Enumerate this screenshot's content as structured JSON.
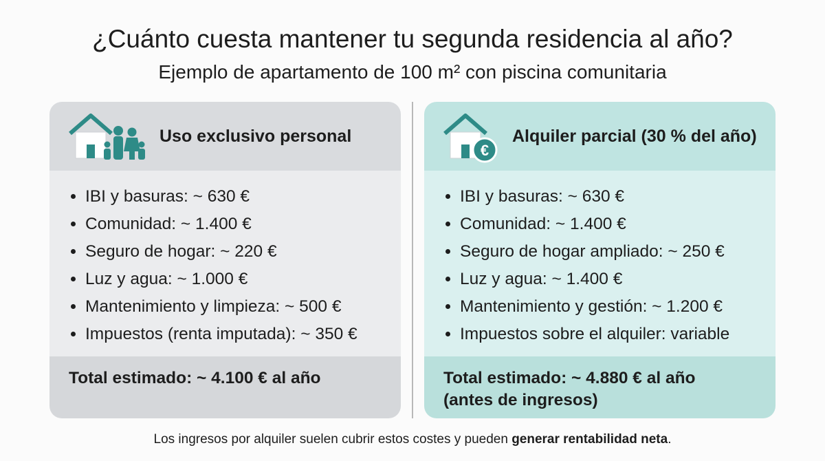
{
  "header": {
    "title": "¿Cuánto cuesta mantener tu segunda residencia al año?",
    "subtitle": "Ejemplo de apartamento de 100 m² con piscina comunitaria"
  },
  "cards": [
    {
      "heading": "Uso exclusivo personal",
      "items": [
        "IBI y basuras: ~ 630 €",
        "Comunidad: ~ 1.400 €",
        "Seguro de hogar: ~ 220 €",
        "Luz y agua: ~ 1.000 €",
        "Mantenimiento y limpieza: ~ 500 €",
        "Impuestos (renta imputada): ~ 350 €"
      ],
      "total": [
        "Total estimado: ~ 4.100 € al año"
      ]
    },
    {
      "heading": "Alquiler parcial (30 % del año)",
      "items": [
        "IBI y basuras: ~ 630 €",
        "Comunidad: ~ 1.400 €",
        "Seguro de hogar ampliado: ~ 250 €",
        "Luz y agua: ~ 1.400 €",
        "Mantenimiento y gestión: ~ 1.200 €",
        "Impuestos sobre el alquiler: variable"
      ],
      "total": [
        "Total estimado: ~ 4.880 € al año",
        "(antes de ingresos)"
      ]
    }
  ],
  "footer": {
    "text": "Los ingresos por alquiler suelen cubrir estos costes y pueden ",
    "emphasis": "generar rentabilidad neta",
    "end": "."
  }
}
